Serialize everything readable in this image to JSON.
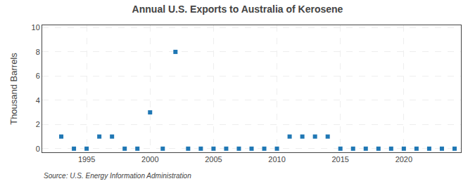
{
  "chart_data": {
    "type": "scatter",
    "title": "Annual U.S. Exports to Australia of Kerosene",
    "ylabel": "Thousand Barrels",
    "annotations": [
      "Source: U.S. Energy Information Administration"
    ],
    "x": [
      1993,
      1994,
      1995,
      1996,
      1997,
      1998,
      1999,
      2000,
      2001,
      2002,
      2003,
      2004,
      2005,
      2006,
      2007,
      2008,
      2009,
      2010,
      2011,
      2012,
      2013,
      2014,
      2015,
      2016,
      2017,
      2018,
      2019,
      2020,
      2021,
      2022,
      2023,
      2024
    ],
    "values": [
      1,
      0,
      0,
      1,
      1,
      0,
      0,
      3,
      0,
      8,
      0,
      0,
      0,
      0,
      0,
      0,
      0,
      0,
      1,
      1,
      1,
      1,
      0,
      0,
      0,
      0,
      0,
      0,
      0,
      0,
      0,
      0
    ],
    "xlim": [
      1991.5,
      2024.5
    ],
    "ylim": [
      -0.3,
      10.2
    ],
    "xticks": [
      1995,
      2000,
      2005,
      2010,
      2015,
      2020
    ],
    "yticks": [
      0,
      2,
      4,
      6,
      8,
      10
    ],
    "grid": true,
    "marker": "square"
  }
}
